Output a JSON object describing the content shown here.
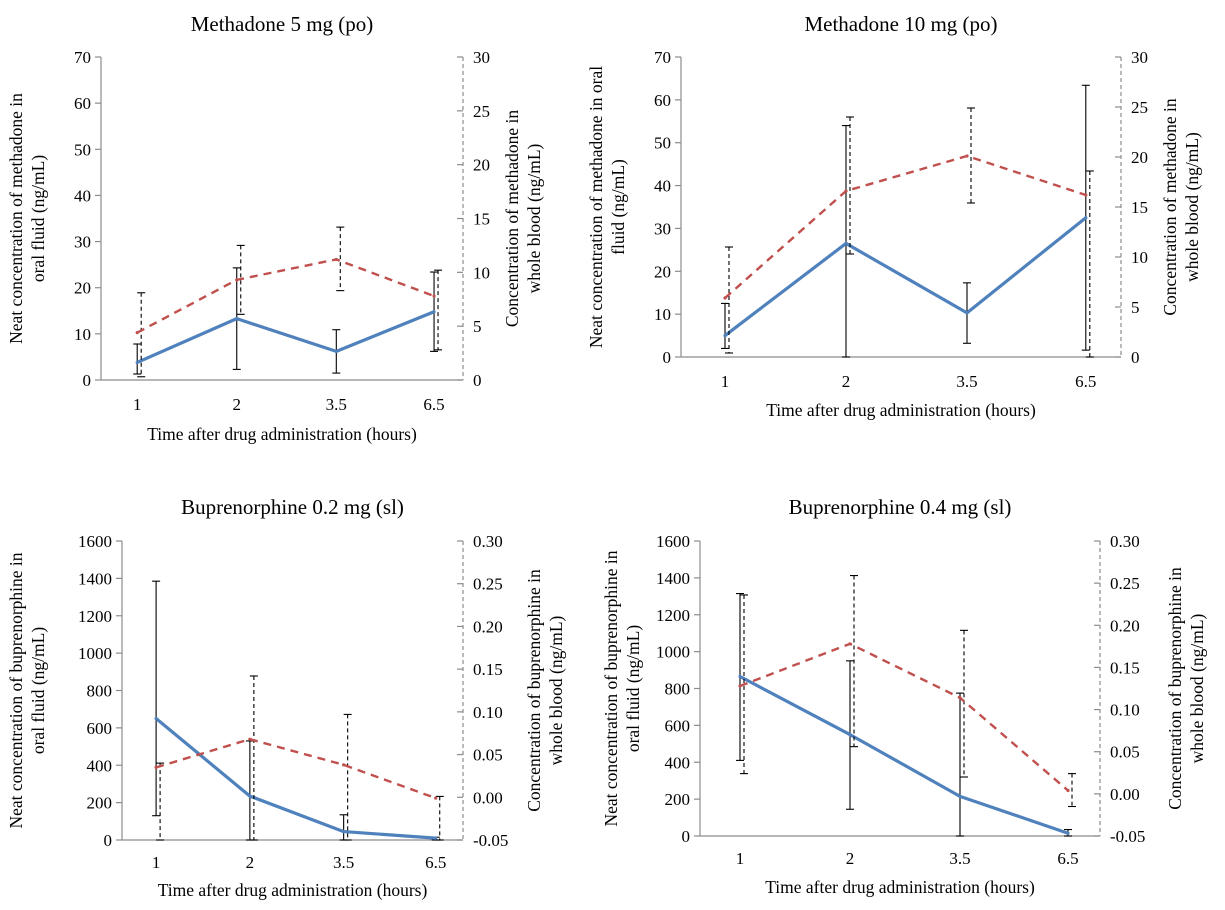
{
  "chart_data": [
    {
      "type": "line",
      "title": "Methadone 5 mg (po)",
      "categories": [
        "1",
        "2",
        "3.5",
        "6.5"
      ],
      "xlabel": "Time after drug administration (hours)",
      "ylabel": "Neat concentration of methadone in oral fluid (ng/mL)",
      "ylabel_lines": [
        "Neat concentration of methadone in",
        "oral fluid (ng/mL)"
      ],
      "y2label": "Concentration of methadone in whole blood (ng/mL)",
      "y2label_lines": [
        "Concentration of methadone in",
        "whole blood (ng/mL)"
      ],
      "ylim": [
        0,
        70
      ],
      "yticks": [
        0,
        10,
        20,
        30,
        40,
        50,
        60,
        70
      ],
      "y2lim": [
        0,
        30
      ],
      "y2ticks": [
        0,
        5,
        10,
        15,
        20,
        25,
        30
      ],
      "series": [
        {
          "axis": "left",
          "color": "#4f81bd",
          "dash": false,
          "values": [
            3.8,
            13.3,
            6.2,
            14.8
          ],
          "err_low": [
            1.3,
            2.3,
            1.5,
            6.2
          ],
          "err_high": [
            7.8,
            24.3,
            10.9,
            23.4
          ]
        },
        {
          "axis": "right",
          "color": "#c0504d",
          "dash": true,
          "values": [
            4.4,
            9.3,
            11.2,
            7.8
          ],
          "err_low": [
            0.3,
            6.1,
            8.3,
            2.8
          ],
          "err_high": [
            8.1,
            12.5,
            14.2,
            10.2
          ]
        }
      ]
    },
    {
      "type": "line",
      "title": "Methadone 10 mg (po)",
      "categories": [
        "1",
        "2",
        "3.5",
        "6.5"
      ],
      "xlabel": "Time after drug administration (hours)",
      "ylabel": "Neat concentration of methadone in oral fluid (ng/mL)",
      "ylabel_lines": [
        "Neat concentration of methadone in oral",
        "fluid (ng/mL)"
      ],
      "y2label": "Concentration of methadone in whole blood (ng/mL)",
      "y2label_lines": [
        "Concentration of methadone in",
        "whole blood (ng/mL)"
      ],
      "ylim": [
        0,
        70
      ],
      "yticks": [
        0,
        10,
        20,
        30,
        40,
        50,
        60,
        70
      ],
      "y2lim": [
        0,
        30
      ],
      "y2ticks": [
        0,
        5,
        10,
        15,
        20,
        25,
        30
      ],
      "series": [
        {
          "axis": "left",
          "color": "#4f81bd",
          "dash": false,
          "values": [
            5.0,
            26.5,
            10.3,
            32.5
          ],
          "err_low": [
            2.0,
            0,
            3.2,
            1.6
          ],
          "err_high": [
            12.5,
            54.0,
            17.3,
            63.4
          ]
        },
        {
          "axis": "right",
          "color": "#c0504d",
          "dash": true,
          "values": [
            5.9,
            16.6,
            20.1,
            16.2
          ],
          "err_low": [
            0.4,
            10.3,
            15.4,
            0.0
          ],
          "err_high": [
            11.0,
            24.0,
            24.9,
            18.6
          ]
        }
      ]
    },
    {
      "type": "line",
      "title": "Buprenorphine 0.2 mg (sl)",
      "categories": [
        "1",
        "2",
        "3.5",
        "6.5"
      ],
      "xlabel": "Time after drug administration (hours)",
      "ylabel": "Neat concentration of buprenorphine in oral fluid (ng/mL)",
      "ylabel_lines": [
        "Neat concentration of buprenorphine in",
        "oral fluid (ng/mL)"
      ],
      "y2label": "Concentration of buprenorphine in whole blood (ng/mL)",
      "y2label_lines": [
        "Concentration of buprenorphine in",
        "whole blood (ng/mL)"
      ],
      "ylim": [
        0,
        1600
      ],
      "yticks": [
        0,
        200,
        400,
        600,
        800,
        1000,
        1200,
        1400,
        1600
      ],
      "y2lim": [
        -0.05,
        0.3
      ],
      "y2ticks": [
        "-0.05",
        "0.00",
        "0.05",
        "0.10",
        "0.15",
        "0.20",
        "0.25",
        "0.30"
      ],
      "series": [
        {
          "axis": "left",
          "color": "#4f81bd",
          "dash": false,
          "values": [
            650,
            235,
            45,
            10
          ],
          "err_low": [
            130,
            0,
            0,
            0
          ],
          "err_high": [
            1385,
            530,
            135,
            15
          ]
        },
        {
          "axis": "right",
          "color": "#c0504d",
          "dash": true,
          "values": [
            0.035,
            0.068,
            0.038,
            -0.001
          ],
          "err_low": [
            -0.05,
            -0.05,
            -0.05,
            -0.05
          ],
          "err_high": [
            0.04,
            0.142,
            0.097,
            0.001
          ]
        }
      ]
    },
    {
      "type": "line",
      "title": "Buprenorphine 0.4 mg (sl)",
      "categories": [
        "1",
        "2",
        "3.5",
        "6.5"
      ],
      "xlabel": "Time after drug administration (hours)",
      "ylabel": "Neat concentration of buprenorphine in oral fluid (ng/mL)",
      "ylabel_lines": [
        "Neat concentration of buprenorphine in",
        "oral fluid  (ng/mL)"
      ],
      "y2label": "Concentration of buprenorphine in whole blood (ng/mL)",
      "y2label_lines": [
        "Concentration of buprenorphine in",
        "whole blood (ng/mL)"
      ],
      "ylim": [
        0,
        1600
      ],
      "yticks": [
        0,
        200,
        400,
        600,
        800,
        1000,
        1200,
        1400,
        1600
      ],
      "y2lim": [
        -0.05,
        0.3
      ],
      "y2ticks": [
        "-0.05",
        "0.00",
        "0.05",
        "0.10",
        "0.15",
        "0.20",
        "0.25",
        "0.30"
      ],
      "series": [
        {
          "axis": "left",
          "color": "#4f81bd",
          "dash": false,
          "values": [
            865,
            550,
            215,
            15
          ],
          "err_low": [
            410,
            145,
            0,
            0
          ],
          "err_high": [
            1315,
            950,
            775,
            35
          ]
        },
        {
          "axis": "right",
          "color": "#c0504d",
          "dash": true,
          "values": [
            0.128,
            0.178,
            0.114,
            0.004
          ],
          "err_low": [
            0.024,
            0.056,
            0.02,
            -0.015
          ],
          "err_high": [
            0.236,
            0.259,
            0.194,
            0.024
          ]
        }
      ]
    }
  ]
}
